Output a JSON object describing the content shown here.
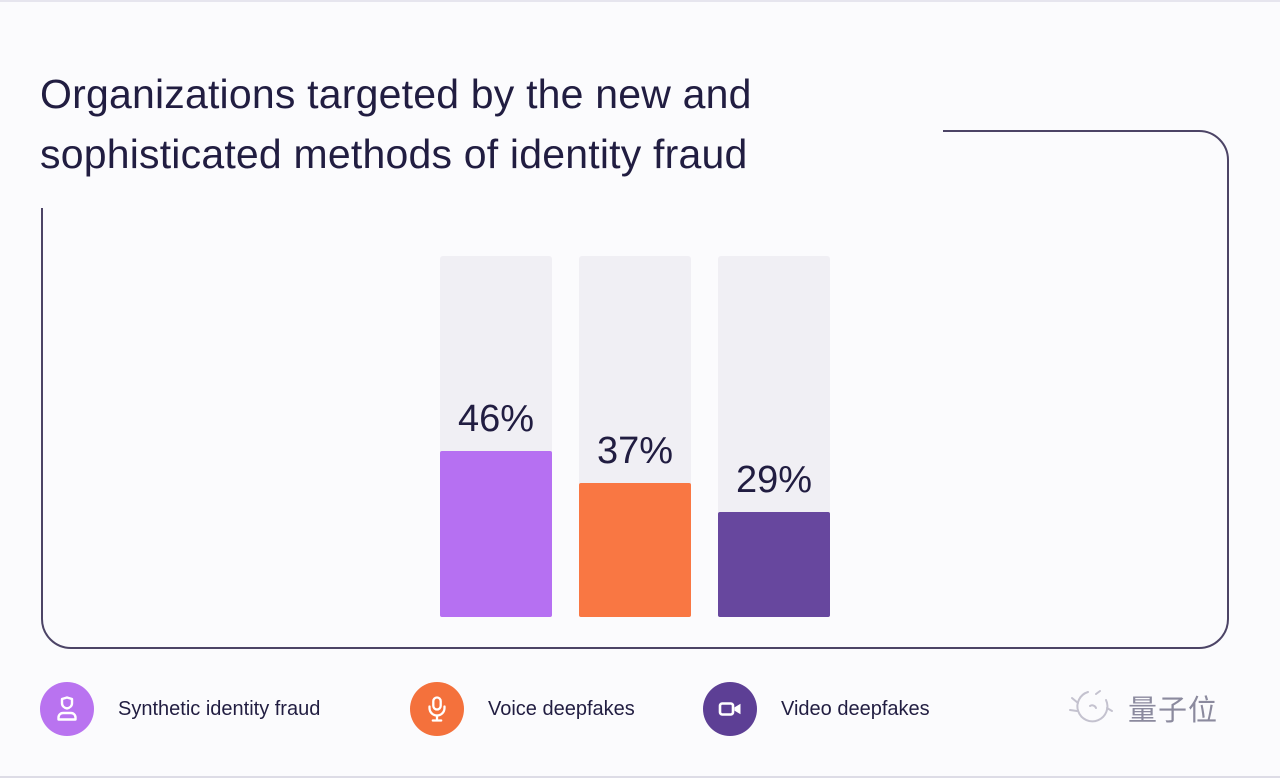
{
  "title_lines": {
    "0": "Organizations targeted by the new and",
    "1": "sophisticated methods of identity fraud"
  },
  "chart_data": {
    "type": "bar",
    "title": "Organizations targeted by the new and sophisticated methods of identity fraud",
    "categories": [
      "Synthetic identity fraud",
      "Voice deepfakes",
      "Video deepfakes"
    ],
    "values": [
      46,
      37,
      29
    ],
    "value_labels": [
      "46%",
      "37%",
      "29%"
    ],
    "colors": [
      "#b670f2",
      "#f97743",
      "#67479e"
    ],
    "track_color": "#f0eff4",
    "ylim": [
      0,
      100
    ],
    "grid": false,
    "legend_position": "bottom"
  },
  "legend": {
    "items": [
      {
        "label": "Synthetic identity fraud",
        "color": "#b973f0",
        "icon": "person-id-icon"
      },
      {
        "label": "Voice deepfakes",
        "color": "#f4713c",
        "icon": "microphone-icon"
      },
      {
        "label": "Video deepfakes",
        "color": "#5d3f95",
        "icon": "video-camera-icon"
      }
    ]
  },
  "watermark": {
    "text": "量子位"
  },
  "colors": {
    "text": "#211d41",
    "frame_border": "#4c4466",
    "background": "#fbfbfd"
  }
}
